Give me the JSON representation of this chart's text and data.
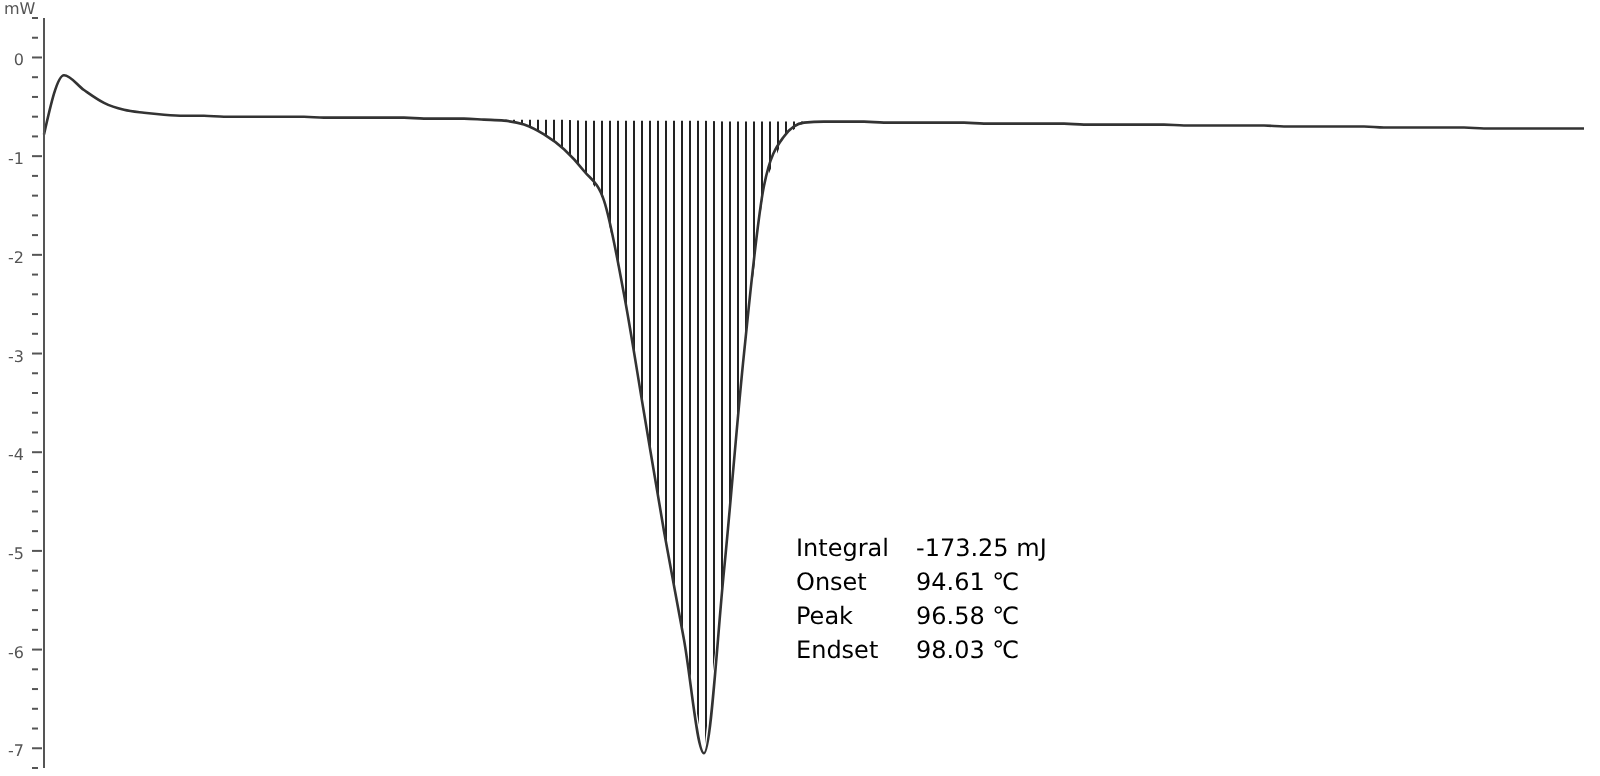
{
  "chart_data": {
    "type": "line",
    "ylabel": "mW",
    "categories": [
      null,
      null,
      null,
      null,
      null,
      null,
      null,
      null,
      null,
      null,
      null,
      null,
      null,
      null,
      null,
      null,
      null,
      null,
      null,
      null,
      null,
      null,
      null,
      null,
      null,
      null,
      null,
      null,
      null,
      null,
      null,
      null,
      null,
      null,
      null,
      null,
      null,
      null,
      null,
      null,
      null,
      null,
      null,
      null,
      null,
      null,
      null,
      null,
      null,
      null,
      null,
      null,
      null,
      null,
      null,
      null,
      null,
      null,
      null,
      null,
      null,
      null,
      null,
      null,
      null,
      null,
      null,
      null,
      null,
      null,
      null,
      null,
      null,
      null,
      null,
      null,
      null,
      null
    ],
    "series": [
      {
        "color": "#333333",
        "values": [
          -0.78,
          -0.18,
          -0.33,
          -0.46,
          -0.53,
          -0.56,
          -0.58,
          -0.59,
          -0.59,
          -0.6,
          -0.6,
          -0.6,
          -0.6,
          -0.6,
          -0.61,
          -0.61,
          -0.61,
          -0.61,
          -0.61,
          -0.62,
          -0.62,
          -0.62,
          -0.63,
          -0.64,
          -0.68,
          -0.78,
          -0.93,
          -1.15,
          -1.45,
          -2.4,
          -3.6,
          -4.8,
          -5.9,
          -7.05,
          -5.2,
          -3.0,
          -1.3,
          -0.8,
          -0.66,
          -0.65,
          -0.65,
          -0.65,
          -0.66,
          -0.66,
          -0.66,
          -0.66,
          -0.66,
          -0.67,
          -0.67,
          -0.67,
          -0.67,
          -0.67,
          -0.68,
          -0.68,
          -0.68,
          -0.68,
          -0.68,
          -0.69,
          -0.69,
          -0.69,
          -0.69,
          -0.69,
          -0.7,
          -0.7,
          -0.7,
          -0.7,
          -0.7,
          -0.71,
          -0.71,
          -0.71,
          -0.71,
          -0.71,
          -0.72,
          -0.72,
          -0.72,
          -0.72,
          -0.72,
          -0.72
        ],
        "lower": [
          null,
          null,
          null,
          null,
          null,
          null,
          null,
          null,
          null,
          null,
          null,
          null,
          null,
          null,
          null,
          null,
          null,
          null,
          null,
          null,
          null,
          null,
          -0.63,
          -0.63,
          -0.63,
          -0.63,
          -0.63,
          -0.64,
          -0.64,
          -0.64,
          -0.64,
          -0.64,
          -0.64,
          -0.64,
          -0.65,
          -0.65,
          -0.65,
          -0.65,
          -0.65,
          -0.65,
          -0.65,
          -0.66,
          -0.66,
          -0.66,
          -0.66,
          null,
          null,
          null,
          null,
          null,
          null,
          null,
          null,
          null,
          null,
          null,
          null,
          null,
          null,
          null,
          null,
          null,
          null,
          null,
          null,
          null,
          null,
          null,
          null,
          null,
          null,
          null,
          null,
          null,
          null,
          null,
          null,
          null
        ],
        "upper": [
          null,
          null,
          null,
          null,
          null,
          null,
          null,
          null,
          null,
          null,
          null,
          null,
          null,
          null,
          null,
          null,
          null,
          null,
          null,
          null,
          null,
          null,
          -0.63,
          -0.64,
          -0.68,
          -0.78,
          -0.93,
          -1.15,
          -1.45,
          -2.4,
          -3.6,
          -4.8,
          -5.9,
          -7.05,
          -5.2,
          -3.0,
          -1.3,
          -0.8,
          -0.66,
          -0.65,
          -0.65,
          -0.65,
          -0.66,
          -0.66,
          -0.66,
          null,
          null,
          null,
          null,
          null,
          null,
          null,
          null,
          null,
          null,
          null,
          null,
          null,
          null,
          null,
          null,
          null,
          null,
          null,
          null,
          null,
          null,
          null,
          null,
          null,
          null,
          null,
          null,
          null,
          null,
          null,
          null,
          null
        ]
      }
    ],
    "ylim": [
      -7.2,
      0.4
    ],
    "yticks": [
      {
        "value": 0.4,
        "label": null
      },
      {
        "value": 0.2,
        "label": null
      },
      0,
      {
        "value": -0.2,
        "label": null
      },
      {
        "value": -0.4,
        "label": null
      },
      {
        "value": -0.6,
        "label": null
      },
      {
        "value": -0.8,
        "label": null
      },
      -1,
      {
        "value": -1.2,
        "label": null
      },
      {
        "value": -1.4,
        "label": null
      },
      {
        "value": -1.6,
        "label": null
      },
      {
        "value": -1.8,
        "label": null
      },
      -2,
      {
        "value": -2.2,
        "label": null
      },
      {
        "value": -2.4,
        "label": null
      },
      {
        "value": -2.6,
        "label": null
      },
      {
        "value": -2.8,
        "label": null
      },
      -3,
      {
        "value": -3.2,
        "label": null
      },
      {
        "value": -3.4,
        "label": null
      },
      {
        "value": -3.6,
        "label": null
      },
      {
        "value": -3.8,
        "label": null
      },
      -4,
      {
        "value": -4.2,
        "label": null
      },
      {
        "value": -4.4,
        "label": null
      },
      {
        "value": -4.6,
        "label": null
      },
      {
        "value": -4.8,
        "label": null
      },
      -5,
      {
        "value": -5.2,
        "label": null
      },
      {
        "value": -5.4,
        "label": null
      },
      {
        "value": -5.6,
        "label": null
      },
      {
        "value": -5.8,
        "label": null
      },
      -6,
      {
        "value": -6.2,
        "label": null
      },
      {
        "value": -6.4,
        "label": null
      },
      {
        "value": -6.6,
        "label": null
      },
      {
        "value": -6.8,
        "label": null
      },
      -7,
      {
        "value": -7.2,
        "label": null
      }
    ],
    "tick_labels": "y",
    "grid": false,
    "legend": false,
    "marker": "none",
    "line_style": "solid",
    "annotations": [
      "Integral -173.25 mJ",
      "Onset 94.61 ℃",
      "Peak 96.58 ℃",
      "Endset 98.03 ℃"
    ]
  }
}
